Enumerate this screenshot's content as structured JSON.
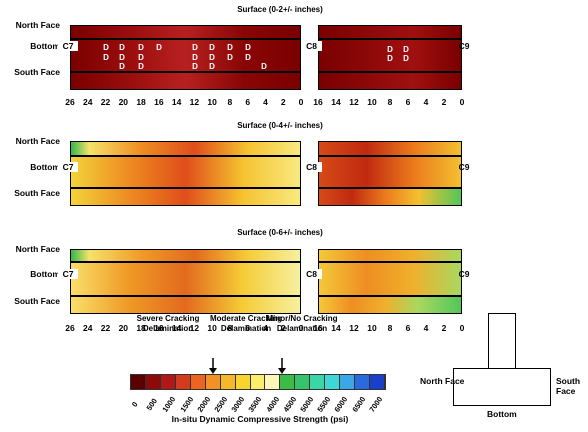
{
  "colors": {
    "severe_dark": "#7a0000",
    "severe": "#a80d0d",
    "orange": "#f08a1a",
    "yellow": "#f6d92b",
    "light_yellow": "#faf3a3",
    "green": "#2fb54a",
    "cyan": "#3dd6d0",
    "blue": "#1a3fc8"
  },
  "panels": [
    {
      "title": "Surface (0-2+/- inches)",
      "row_labels": [
        "North Face",
        "Bottom",
        "South Face"
      ],
      "left_label": "C7",
      "mid_label": "C8",
      "right_label": "C9",
      "ticks_left": [
        "26",
        "24",
        "22",
        "20",
        "18",
        "16",
        "14",
        "12",
        "10",
        "8",
        "6",
        "4",
        "2",
        "0"
      ],
      "ticks_right": [
        "16",
        "14",
        "12",
        "10",
        "8",
        "6",
        "4",
        "2",
        "0"
      ],
      "delam_mark": "D",
      "delam_count": 24
    },
    {
      "title": "Surface (0-4+/- inches)",
      "row_labels": [
        "North Face",
        "Bottom",
        "South Face"
      ],
      "left_label": "C7",
      "mid_label": "C8",
      "right_label": "C9"
    },
    {
      "title": "Surface (0-6+/- inches)",
      "row_labels": [
        "North Face",
        "Bottom",
        "South Face"
      ],
      "left_label": "C7",
      "mid_label": "C8",
      "right_label": "C9",
      "ticks_left": [
        "26",
        "24",
        "22",
        "20",
        "18",
        "16",
        "14",
        "12",
        "10",
        "8",
        "6",
        "4",
        "2",
        "0"
      ],
      "ticks_right": [
        "16",
        "14",
        "12",
        "10",
        "8",
        "6",
        "4",
        "2",
        "0"
      ]
    }
  ],
  "legend": {
    "categories": [
      "Severe Cracking Delamination",
      "Moderate Cracking Delamination",
      "Minor/No Cracking Delamination"
    ],
    "ticks": [
      "0",
      "500",
      "1000",
      "1500",
      "2000",
      "2500",
      "3000",
      "3500",
      "4000",
      "4500",
      "5000",
      "5500",
      "6000",
      "6500",
      "7000"
    ],
    "axis_title": "In-situ Dynamic Compressive Strength (psi)",
    "swatches": [
      "#5a0000",
      "#8b0a0a",
      "#b01818",
      "#d43a1c",
      "#ec6420",
      "#f39224",
      "#f6b82a",
      "#f7d52e",
      "#fbee6a",
      "#fdf8b8",
      "#3dbb47",
      "#35c46c",
      "#3ad6a8",
      "#3fd6d6",
      "#3aa8e6",
      "#2a6ade",
      "#1a3fc8"
    ]
  },
  "schematic": {
    "north_label": "North Face",
    "south_label": "South Face",
    "bottom_label": "Bottom"
  }
}
